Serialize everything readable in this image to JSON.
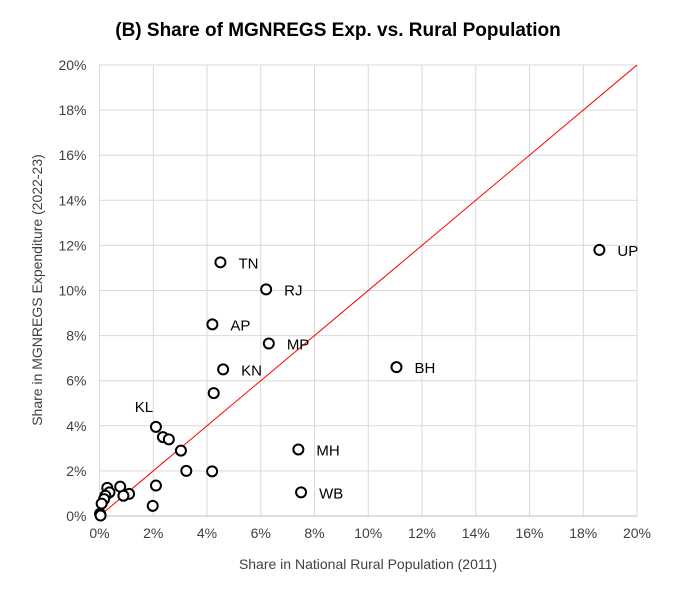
{
  "chart_data": {
    "type": "scatter",
    "title": "(B) Share of MGNREGS Exp. vs. Rural Population",
    "xlabel": "Share in National Rural Population (2011)",
    "ylabel": "Share in MGNREGS  Expenditure  (2022-23)",
    "xlim": [
      0,
      20
    ],
    "ylim": [
      0,
      20
    ],
    "xticks": [
      "0%",
      "2%",
      "4%",
      "6%",
      "8%",
      "10%",
      "12%",
      "14%",
      "16%",
      "18%",
      "20%"
    ],
    "yticks": [
      "0%",
      "2%",
      "4%",
      "6%",
      "8%",
      "10%",
      "12%",
      "14%",
      "16%",
      "18%",
      "20%"
    ],
    "grid": true,
    "reference_line": {
      "name": "45-degree line",
      "color": "#ff0000",
      "from": [
        0,
        0
      ],
      "to": [
        20,
        20
      ]
    },
    "points": [
      {
        "x": 18.6,
        "y": 11.8,
        "label": "UP"
      },
      {
        "x": 4.5,
        "y": 11.25,
        "label": "TN"
      },
      {
        "x": 6.2,
        "y": 10.05,
        "label": "RJ"
      },
      {
        "x": 4.2,
        "y": 8.5,
        "label": "AP"
      },
      {
        "x": 6.3,
        "y": 7.65,
        "label": "MP"
      },
      {
        "x": 4.6,
        "y": 6.5,
        "label": "KN"
      },
      {
        "x": 11.05,
        "y": 6.6,
        "label": "BH"
      },
      {
        "x": 4.25,
        "y": 5.45,
        "label": ""
      },
      {
        "x": 2.1,
        "y": 3.95,
        "label": "KL"
      },
      {
        "x": 2.36,
        "y": 3.5,
        "label": ""
      },
      {
        "x": 2.58,
        "y": 3.4,
        "label": ""
      },
      {
        "x": 3.03,
        "y": 2.9,
        "label": ""
      },
      {
        "x": 3.23,
        "y": 2.0,
        "label": ""
      },
      {
        "x": 4.19,
        "y": 1.98,
        "label": ""
      },
      {
        "x": 7.4,
        "y": 2.95,
        "label": "MH"
      },
      {
        "x": 7.5,
        "y": 1.05,
        "label": "WB"
      },
      {
        "x": 2.1,
        "y": 1.35,
        "label": ""
      },
      {
        "x": 1.98,
        "y": 0.45,
        "label": ""
      },
      {
        "x": 0.77,
        "y": 1.3,
        "label": ""
      },
      {
        "x": 1.1,
        "y": 0.98,
        "label": ""
      },
      {
        "x": 0.89,
        "y": 0.9,
        "label": ""
      },
      {
        "x": 0.29,
        "y": 1.25,
        "label": ""
      },
      {
        "x": 0.37,
        "y": 1.05,
        "label": ""
      },
      {
        "x": 0.22,
        "y": 0.9,
        "label": ""
      },
      {
        "x": 0.17,
        "y": 0.75,
        "label": ""
      },
      {
        "x": 0.08,
        "y": 0.55,
        "label": ""
      },
      {
        "x": 0.02,
        "y": 0.1,
        "label": ""
      },
      {
        "x": 0.04,
        "y": 0.02,
        "label": ""
      }
    ]
  }
}
